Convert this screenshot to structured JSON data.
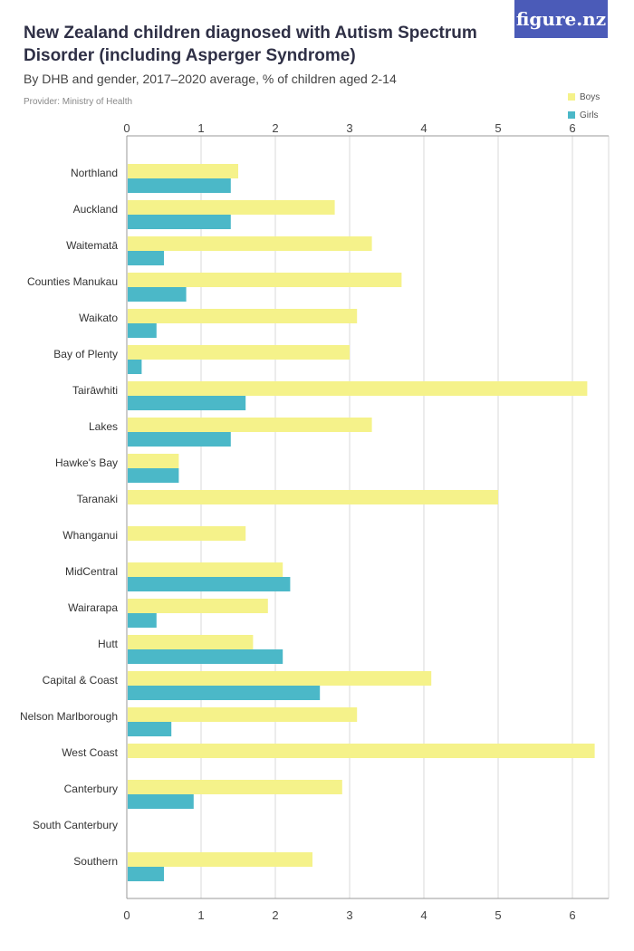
{
  "header": {
    "title": "New Zealand children diagnosed with Autism Spectrum Disorder (including Asperger Syndrome)",
    "subtitle": "By DHB and gender, 2017–2020 average, % of children aged 2-14",
    "provider": "Provider: Ministry of Health",
    "logo": "figure.nz"
  },
  "colors": {
    "boys": "#f5f28a",
    "girls": "#4bb8c8",
    "grid": "#d9d9d9",
    "logo_bg": "#4b5bb8"
  },
  "chart_data": {
    "type": "bar",
    "orientation": "horizontal",
    "title": "New Zealand children diagnosed with Autism Spectrum Disorder (including Asperger Syndrome)",
    "subtitle": "By DHB and gender, 2017–2020 average, % of children aged 2-14",
    "xlim": [
      0,
      6.5
    ],
    "xticks": [
      0,
      1,
      2,
      3,
      4,
      5,
      6
    ],
    "grid": true,
    "legend_position": "top-right",
    "categories": [
      "Northland",
      "Auckland",
      "Waitematā",
      "Counties Manukau",
      "Waikato",
      "Bay of Plenty",
      "Tairāwhiti",
      "Lakes",
      "Hawke's Bay",
      "Taranaki",
      "Whanganui",
      "MidCentral",
      "Wairarapa",
      "Hutt",
      "Capital & Coast",
      "Nelson Marlborough",
      "West Coast",
      "Canterbury",
      "South Canterbury",
      "Southern"
    ],
    "series": [
      {
        "name": "Boys",
        "color": "#f5f28a",
        "values": [
          1.5,
          2.8,
          3.3,
          3.7,
          3.1,
          3.0,
          6.2,
          3.3,
          0.7,
          5.0,
          1.6,
          2.1,
          1.9,
          1.7,
          4.1,
          3.1,
          6.3,
          2.9,
          null,
          2.5
        ]
      },
      {
        "name": "Girls",
        "color": "#4bb8c8",
        "values": [
          1.4,
          1.4,
          0.5,
          0.8,
          0.4,
          0.2,
          1.6,
          1.4,
          0.7,
          null,
          null,
          2.2,
          0.4,
          2.1,
          2.6,
          0.6,
          null,
          0.9,
          null,
          0.5
        ]
      }
    ]
  }
}
